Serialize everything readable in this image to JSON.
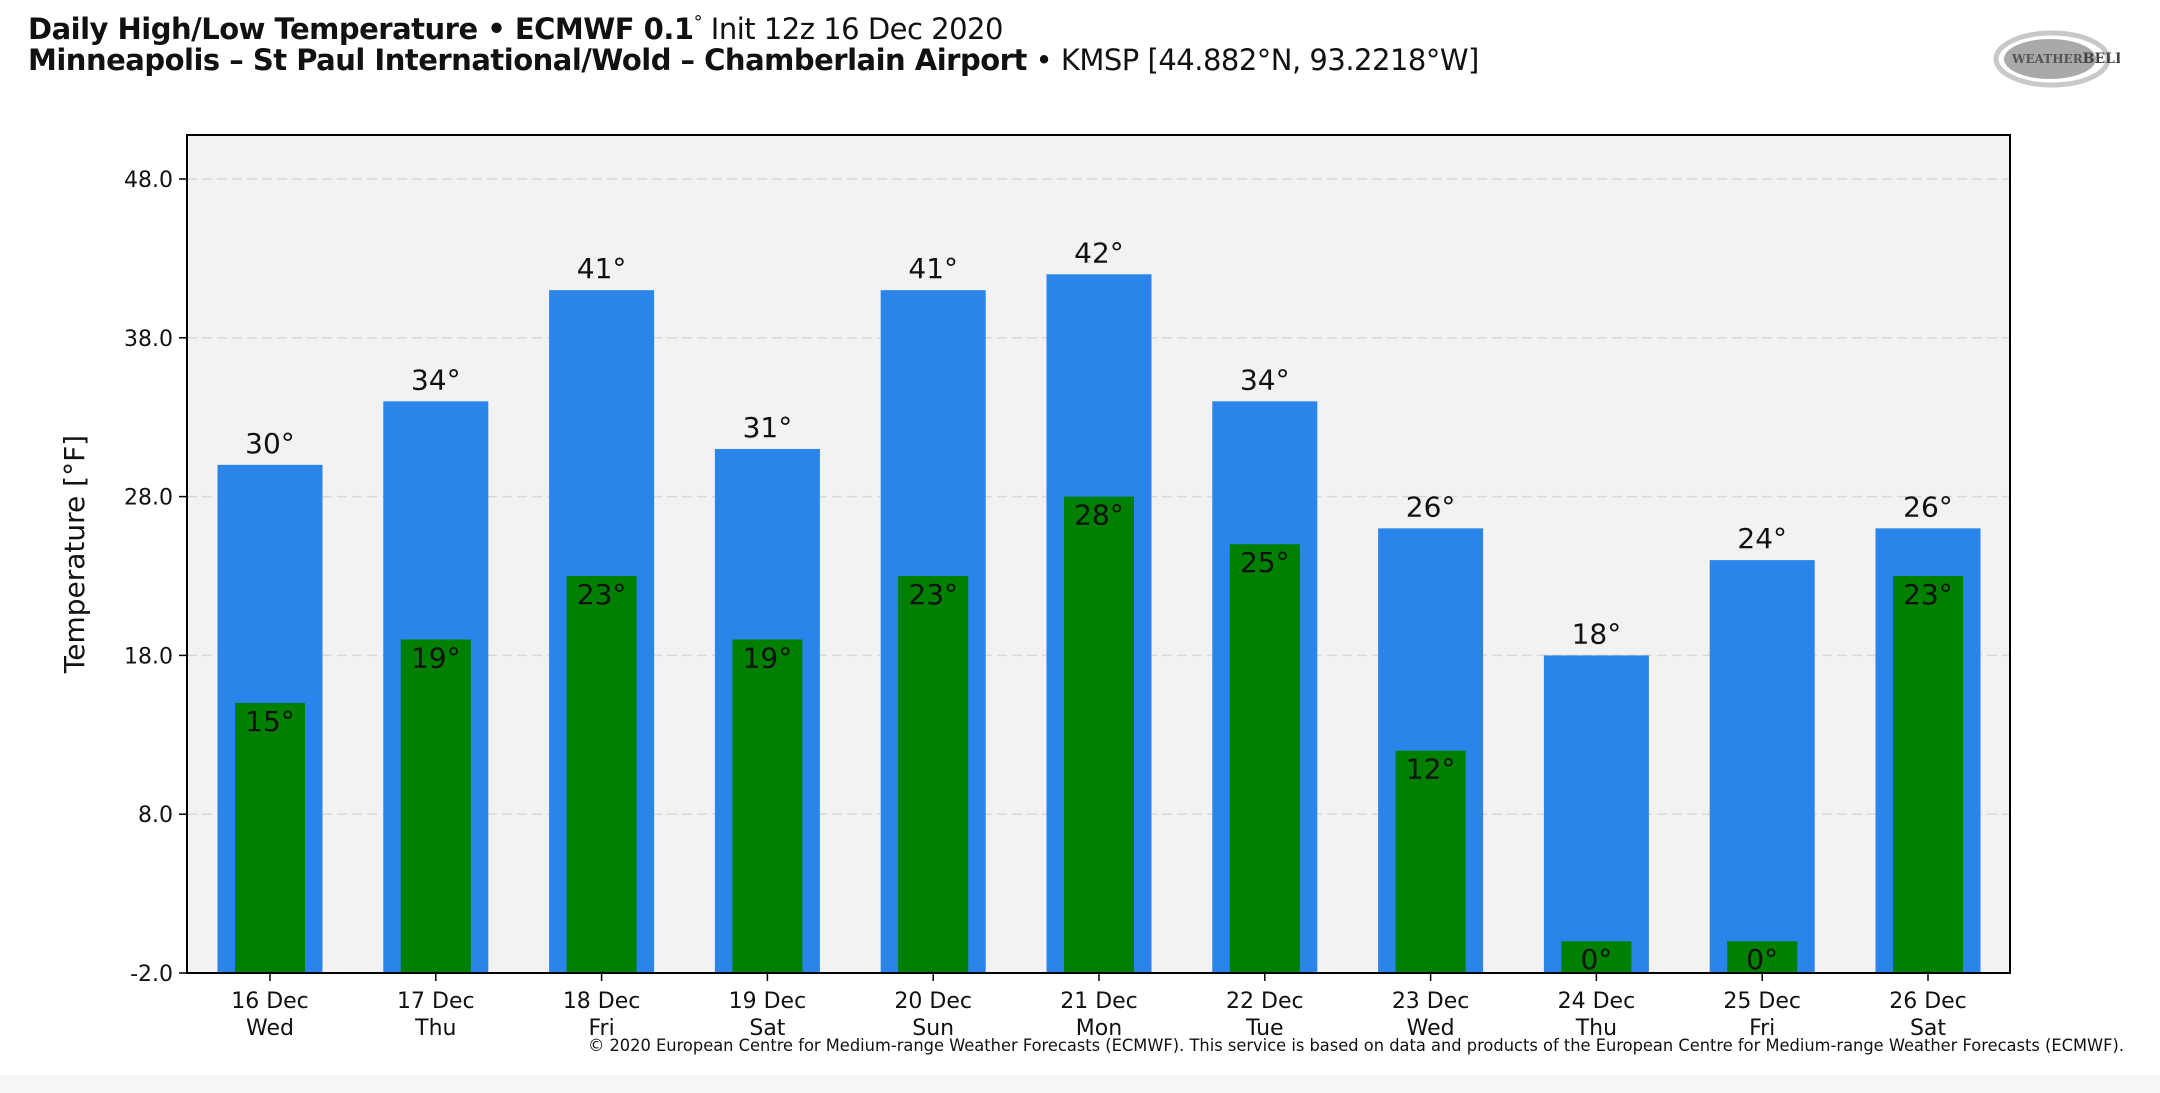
{
  "header": {
    "title_bold": "Daily High/Low Temperature • ECMWF 0.1",
    "title_deg": "°",
    "title_rest": " Init 12z 16 Dec 2020",
    "location_bold": "Minneapolis – St Paul International/Wold – Chamberlain Airport",
    "location_rest": " • KMSP [44.882°N, 93.2218°W]"
  },
  "logo": {
    "text": "WeatherBELL"
  },
  "footer": {
    "copyright": "© 2020 European Centre for Medium-range Weather Forecasts (ECMWF). This service is based on data and products of the European Centre for Medium-range Weather Forecasts (ECMWF)."
  },
  "colors": {
    "high": "#2b84ea",
    "low": "#007f00",
    "plot_bg": "#f2f2f2"
  },
  "chart_data": {
    "type": "bar",
    "title": "Daily High/Low Temperature",
    "ylabel": "Temperature [°F]",
    "xlabel": "",
    "ylim": [
      -2,
      50.5
    ],
    "yticks": [
      -2.0,
      8.0,
      18.0,
      28.0,
      38.0,
      48.0
    ],
    "ytick_labels": [
      "-2.0",
      "8.0",
      "18.0",
      "28.0",
      "38.0",
      "48.0"
    ],
    "grid": true,
    "categories": [
      "16 Dec",
      "17 Dec",
      "18 Dec",
      "19 Dec",
      "20 Dec",
      "21 Dec",
      "22 Dec",
      "23 Dec",
      "24 Dec",
      "25 Dec",
      "26 Dec"
    ],
    "weekdays": [
      "Wed",
      "Thu",
      "Fri",
      "Sat",
      "Sun",
      "Mon",
      "Tue",
      "Wed",
      "Thu",
      "Fri",
      "Sat"
    ],
    "series": [
      {
        "name": "High",
        "values": [
          30,
          34,
          41,
          31,
          41,
          42,
          34,
          26,
          18,
          24,
          26
        ]
      },
      {
        "name": "Low",
        "values": [
          15,
          19,
          23,
          19,
          23,
          28,
          25,
          12,
          0,
          0,
          23
        ]
      }
    ]
  }
}
